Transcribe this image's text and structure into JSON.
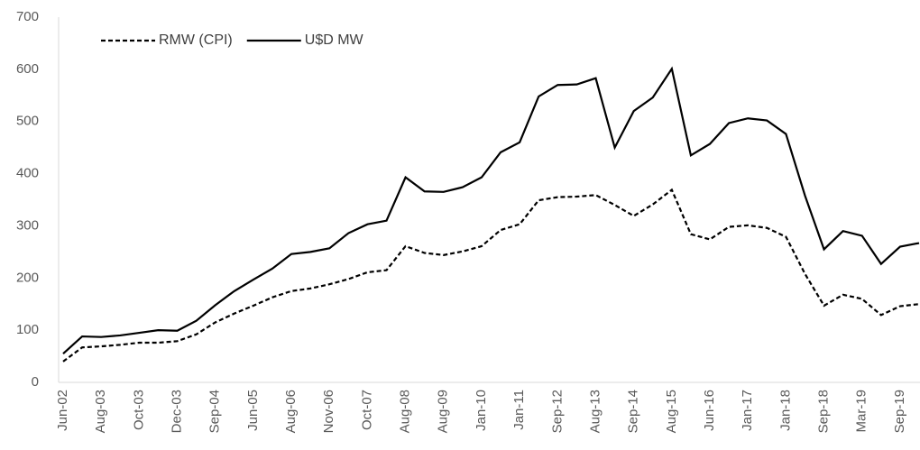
{
  "chart_data": {
    "type": "line",
    "categories": [
      "Jun-02",
      null,
      "Aug-03",
      null,
      "Oct-03",
      null,
      "Dec-03",
      null,
      "Sep-04",
      null,
      "Jun-05",
      null,
      "Aug-06",
      null,
      "Nov-06",
      null,
      "Oct-07",
      null,
      "Aug-08",
      null,
      "Aug-09",
      null,
      "Jan-10",
      null,
      "Jan-11",
      null,
      "Sep-12",
      null,
      "Aug-13",
      null,
      "Sep-14",
      null,
      "Aug-15",
      null,
      "Jun-16",
      null,
      "Jan-17",
      null,
      "Jan-18",
      null,
      "Sep-18",
      null,
      "Mar-19",
      null,
      "Sep-19",
      null
    ],
    "series": [
      {
        "name": "RMW (CPI)",
        "color": "#000000",
        "line_style": "dashed",
        "values": [
          40,
          67,
          69,
          72,
          76,
          76,
          79,
          92,
          115,
          132,
          147,
          163,
          175,
          180,
          188,
          198,
          211,
          215,
          261,
          248,
          244,
          251,
          261,
          292,
          303,
          349,
          355,
          356,
          359,
          340,
          319,
          341,
          369,
          284,
          274,
          298,
          301,
          296,
          279,
          208,
          147,
          168,
          160,
          129,
          146,
          150
        ]
      },
      {
        "name": "U$D MW",
        "color": "#000000",
        "line_style": "solid",
        "values": [
          55,
          88,
          87,
          90,
          95,
          100,
          99,
          118,
          148,
          175,
          197,
          218,
          246,
          250,
          257,
          286,
          303,
          310,
          393,
          366,
          365,
          374,
          393,
          441,
          460,
          548,
          570,
          571,
          583,
          450,
          520,
          546,
          601,
          435,
          457,
          497,
          506,
          502,
          476,
          358,
          255,
          290,
          281,
          227,
          260,
          267
        ]
      }
    ],
    "ylim": [
      0,
      700
    ],
    "yticks": [
      0,
      100,
      200,
      300,
      400,
      500,
      600,
      700
    ],
    "grid": false,
    "legend": "top-left"
  }
}
